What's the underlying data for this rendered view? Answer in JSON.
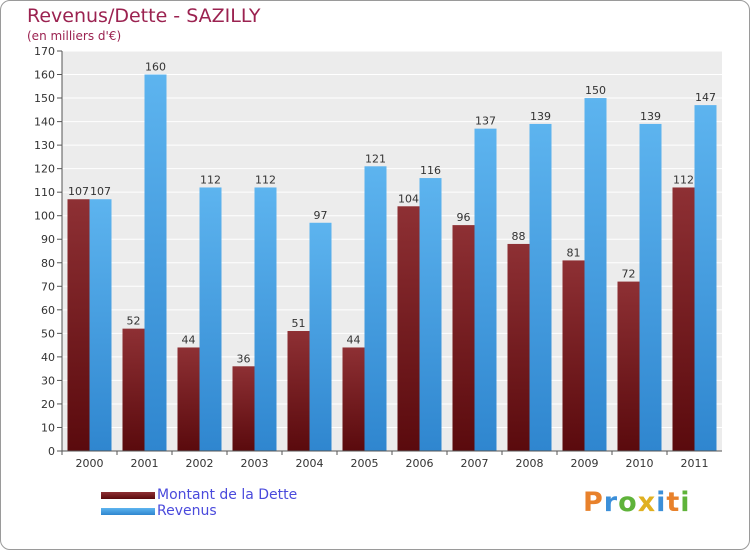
{
  "chart_data": {
    "type": "bar",
    "title": "Revenus/Dette - SAZILLY",
    "subtitle": "(en milliers d'€)",
    "categories": [
      "2000",
      "2001",
      "2002",
      "2003",
      "2004",
      "2005",
      "2006",
      "2007",
      "2008",
      "2009",
      "2010",
      "2011"
    ],
    "series": [
      {
        "name": "Montant de la Dette",
        "color": "#7a1f22",
        "values": [
          107,
          52,
          44,
          36,
          51,
          44,
          104,
          96,
          88,
          81,
          72,
          112
        ]
      },
      {
        "name": "Revenus",
        "color": "#4aa3e6",
        "values": [
          107,
          160,
          112,
          112,
          97,
          121,
          116,
          137,
          139,
          150,
          139,
          147
        ]
      }
    ],
    "ylim": [
      0,
      170
    ],
    "ytick_step": 10,
    "grid": true,
    "legend_position": "bottom-left"
  },
  "brand": {
    "letters": [
      "P",
      "r",
      "o",
      "x",
      "i",
      "t",
      "i"
    ],
    "colors": [
      "#e8812b",
      "#3b8fd9",
      "#5fb33a",
      "#e0b020",
      "#3b8fd9",
      "#e8812b",
      "#5fb33a"
    ]
  }
}
